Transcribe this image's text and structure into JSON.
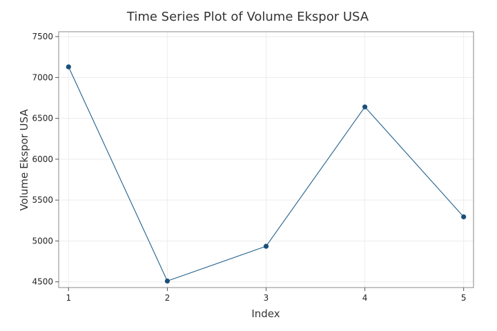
{
  "chart_data": {
    "type": "line",
    "title": "Time Series Plot of Volume Ekspor USA",
    "xlabel": "Index",
    "ylabel": "Volume Ekspor USA",
    "x": [
      1,
      2,
      3,
      4,
      5
    ],
    "series": [
      {
        "values": [
          7130,
          4510,
          4935,
          6640,
          5295
        ]
      }
    ],
    "xlim": [
      0.9,
      5.1
    ],
    "ylim": [
      4430,
      7560
    ],
    "yticks": [
      4500,
      5000,
      5500,
      6000,
      6500,
      7000,
      7500
    ],
    "xticks": [
      1,
      2,
      3,
      4,
      5
    ],
    "grid": true,
    "marker": "circle",
    "line_color": "#1f5f8b",
    "marker_color": "#1b4f7a"
  }
}
